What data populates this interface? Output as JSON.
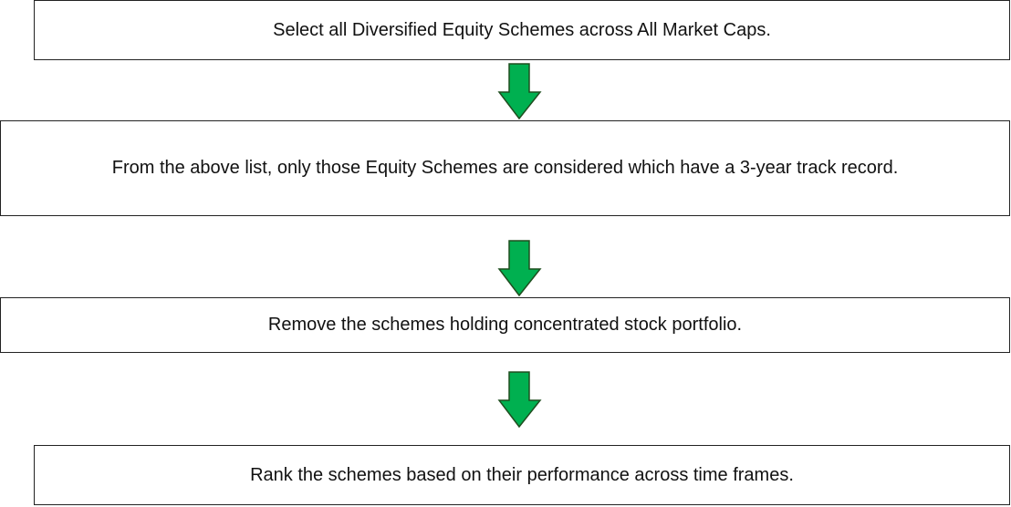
{
  "steps": [
    "Select all Diversified Equity Schemes across All Market Caps.",
    "From the above list, only those Equity Schemes are considered which have a 3-year track record.",
    "Remove the schemes holding concentrated stock portfolio.",
    "Rank the schemes based on their performance across time frames."
  ]
}
